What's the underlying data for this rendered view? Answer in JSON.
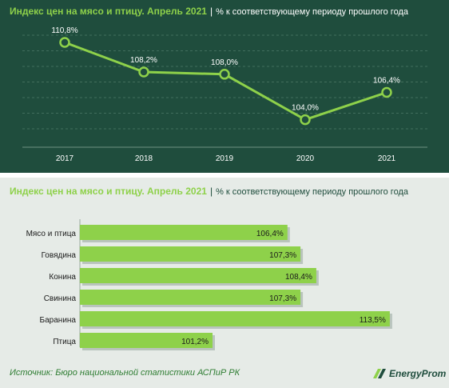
{
  "line_panel": {
    "title": "Индекс цен на мясо и птицу. Апрель 2021",
    "separator": "|",
    "subtitle": "% к соответствующему периоду прошлого года"
  },
  "bar_panel": {
    "title": "Индекс цен на мясо и птицу. Апрель 2021",
    "separator": "|",
    "subtitle": "% к соответствующему периоду прошлого года"
  },
  "footer": {
    "source": "Источник: Бюро национальной  статистики АСПиР РК",
    "logo_text": "EnergyProm",
    "logo_icon": "energyprom-logo-icon"
  },
  "colors": {
    "top_background": "#1f4d3d",
    "bottom_background": "#e6ebe7",
    "accent_green": "#8ed14a",
    "bar_green": "#8ed14a"
  },
  "chart_data": [
    {
      "type": "line",
      "x": [
        "2017",
        "2018",
        "2019",
        "2020",
        "2021"
      ],
      "series": [
        {
          "values": [
            110.8,
            108.2,
            108.0,
            104.0,
            106.4
          ]
        }
      ],
      "data_labels": [
        "110,8%",
        "108,2%",
        "108,0%",
        "104,0%",
        "106,4%"
      ],
      "title": "Индекс цен на мясо и птицу. Апрель 2021",
      "subtitle": "% к соответствующему периоду прошлого года",
      "ylim": [
        102,
        112
      ],
      "grid": true
    },
    {
      "type": "bar",
      "orientation": "horizontal",
      "categories": [
        "Мясо и птица",
        "Говядина",
        "Конина",
        "Свинина",
        "Баранина",
        "Птица"
      ],
      "values": [
        106.4,
        107.3,
        108.4,
        107.3,
        113.5,
        101.2
      ],
      "data_labels": [
        "106,4%",
        "107,3%",
        "108,4%",
        "107,3%",
        "113,5%",
        "101,2%"
      ],
      "title": "Индекс цен на мясо и птицу. Апрель 2021",
      "subtitle": "% к соответствующему периоду прошлого года",
      "xlim": [
        92,
        115
      ],
      "grid": false
    }
  ]
}
